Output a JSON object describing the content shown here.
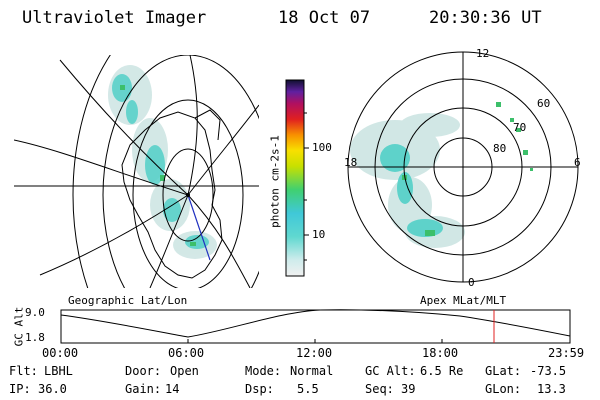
{
  "header": {
    "title": "Ultraviolet Imager",
    "date": "18 Oct 07",
    "time": "20:30:36 UT"
  },
  "colorbar": {
    "label": "photon cm-2s-1",
    "ticks": [
      "100",
      "10"
    ]
  },
  "polar_plot": {
    "lat_labels": [
      "60",
      "70",
      "80"
    ],
    "mlt_labels": [
      "12",
      "18",
      "6",
      "0"
    ]
  },
  "orbit_panel": {
    "left_title": "Geographic Lat/Lon",
    "right_title": "Apex MLat/MLT",
    "ylabel": "GC Alt",
    "yticks": [
      "9.0",
      "1.8"
    ],
    "xticks": [
      "00:00",
      "06:00",
      "12:00",
      "18:00",
      "23:59"
    ]
  },
  "status": {
    "row1": [
      {
        "label": "Flt:",
        "value": "LBHL"
      },
      {
        "label": "Door:",
        "value": "Open"
      },
      {
        "label": "Mode:",
        "value": "Normal"
      },
      {
        "label": "GC Alt:",
        "value": "6.5 Re"
      },
      {
        "label": "GLat:",
        "value": "-73.5"
      }
    ],
    "row2": [
      {
        "label": "IP:",
        "value": "36.0"
      },
      {
        "label": "Gain:",
        "value": "14"
      },
      {
        "label": "Dsp:",
        "value": "5.5"
      },
      {
        "label": "Seq:",
        "value": "39"
      },
      {
        "label": "GLon:",
        "value": "13.3"
      }
    ]
  },
  "colors": {
    "aurora_low": "#cfe6e4",
    "aurora_mid": "#52d0c8",
    "aurora_high": "#3cbf6a",
    "marker": "#e02020"
  }
}
